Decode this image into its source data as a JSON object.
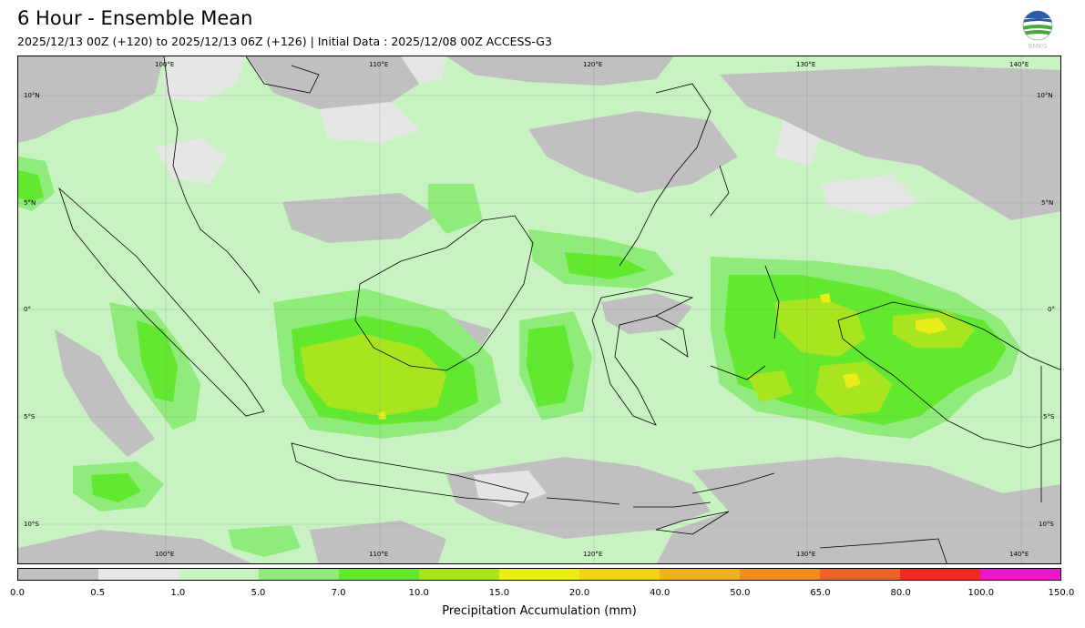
{
  "header": {
    "title": "6 Hour - Ensemble Mean",
    "subtitle": "2025/12/13 00Z (+120) to 2025/12/13 06Z (+126) | Initial Data : 2025/12/08 00Z ACCESS-G3"
  },
  "logo": {
    "name": "bmkg-logo",
    "text": "BMKG"
  },
  "map": {
    "lon_labels": [
      "100°E",
      "110°E",
      "120°E",
      "130°E",
      "140°E"
    ],
    "lat_labels": [
      "10°N",
      "5°N",
      "0°",
      "5°S",
      "10°S"
    ],
    "colors": {
      "below_0_5": "#c0c0c0",
      "from_0_5": "#e6e6e6",
      "from_1": "#c9f2c3",
      "from_5": "#8fec7a",
      "from_7": "#62e82e",
      "from_10": "#a8e51e",
      "from_15": "#e9ee1a",
      "coast": "#000000"
    }
  },
  "colorbar": {
    "label": "Precipitation Accumulation (mm)",
    "ticks": [
      "0.0",
      "0.5",
      "1.0",
      "5.0",
      "7.0",
      "10.0",
      "15.0",
      "20.0",
      "40.0",
      "50.0",
      "65.0",
      "80.0",
      "100.0",
      "150.0"
    ],
    "colors": [
      "#c0c0c0",
      "#e6e6e6",
      "#c9f2c3",
      "#8fec7a",
      "#62e82e",
      "#a8e51e",
      "#e9ee1a",
      "#f2d31c",
      "#eeb21e",
      "#ef8d22",
      "#ec6327",
      "#ec2b25",
      "#e61ac8"
    ]
  }
}
